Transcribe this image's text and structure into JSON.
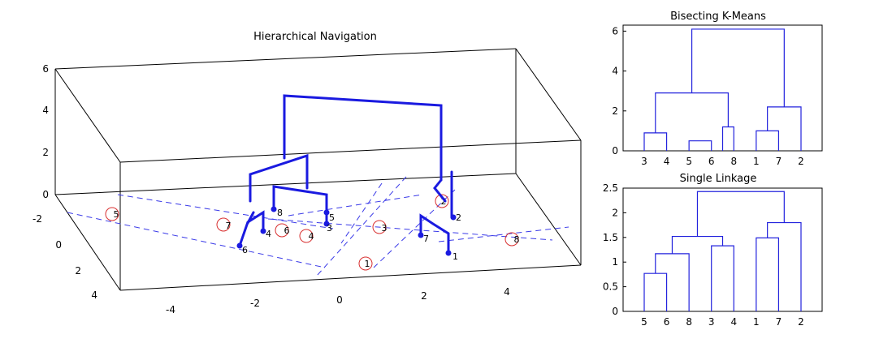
{
  "chart_data": [
    {
      "type": "scatter",
      "title": "Hierarchical Navigation",
      "projection": "3d",
      "xlim": [
        -5,
        5
      ],
      "ylim": [
        -3,
        5
      ],
      "zlim": [
        0,
        6
      ],
      "x_ticks": [
        "-4",
        "-2",
        "0",
        "2",
        "4"
      ],
      "y_ticks": [
        "-2",
        "0",
        "2",
        "4"
      ],
      "z_ticks": [
        "0",
        "2",
        "4",
        "6"
      ],
      "points": [
        {
          "label": "1",
          "color": "#d83030"
        },
        {
          "label": "2",
          "color": "#d83030"
        },
        {
          "label": "3",
          "color": "#d83030"
        },
        {
          "label": "4",
          "color": "#d83030"
        },
        {
          "label": "5",
          "color": "#d83030"
        },
        {
          "label": "6",
          "color": "#d83030"
        },
        {
          "label": "7",
          "color": "#d83030"
        },
        {
          "label": "8",
          "color": "#d83030"
        }
      ],
      "tree_leaf_labels": [
        "1",
        "2",
        "3",
        "4",
        "5",
        "6",
        "7",
        "8"
      ],
      "tree_color": "#1a1ae0",
      "grid": false
    },
    {
      "type": "dendrogram",
      "title": "Bisecting K-Means",
      "leaf_order": [
        "3",
        "4",
        "5",
        "6",
        "8",
        "1",
        "7",
        "2"
      ],
      "ylim": [
        0,
        6.3
      ],
      "y_ticks": [
        "0",
        "2",
        "4",
        "6"
      ],
      "merges": [
        {
          "left": 0,
          "right": 1,
          "height": 0.9
        },
        {
          "left": 2,
          "right": 3,
          "height": 0.5
        },
        {
          "left": 3.5,
          "right": 4,
          "height": 1.2
        },
        {
          "left": 0.5,
          "right": 3.75,
          "height": 2.9
        },
        {
          "left": 5,
          "right": 6,
          "height": 1.0
        },
        {
          "left": 5.5,
          "right": 7,
          "height": 2.2
        },
        {
          "left": 2.125,
          "right": 6.25,
          "height": 6.1
        }
      ],
      "leaf_merge_index": [
        [
          0,
          0
        ],
        [
          0,
          1
        ],
        [
          1,
          2
        ],
        [
          1,
          3
        ],
        [
          2,
          4
        ],
        [
          4,
          5
        ],
        [
          4,
          6
        ],
        [
          5,
          7
        ]
      ],
      "color": "#2222dd"
    },
    {
      "type": "dendrogram",
      "title": "Single Linkage",
      "leaf_order": [
        "5",
        "6",
        "8",
        "3",
        "4",
        "1",
        "7",
        "2"
      ],
      "ylim": [
        0,
        2.5
      ],
      "y_ticks": [
        "0",
        "0.5",
        "1",
        "1.5",
        "2",
        "2.5"
      ],
      "merges": [
        {
          "left": 0,
          "right": 1,
          "height": 0.77
        },
        {
          "left": 0.5,
          "right": 2,
          "height": 1.17
        },
        {
          "left": 3,
          "right": 4,
          "height": 1.33
        },
        {
          "left": 1.25,
          "right": 3.5,
          "height": 1.52
        },
        {
          "left": 5,
          "right": 6,
          "height": 1.49
        },
        {
          "left": 5.5,
          "right": 7,
          "height": 1.8
        },
        {
          "left": 2.375,
          "right": 6.25,
          "height": 2.43
        }
      ],
      "color": "#2222dd"
    }
  ]
}
